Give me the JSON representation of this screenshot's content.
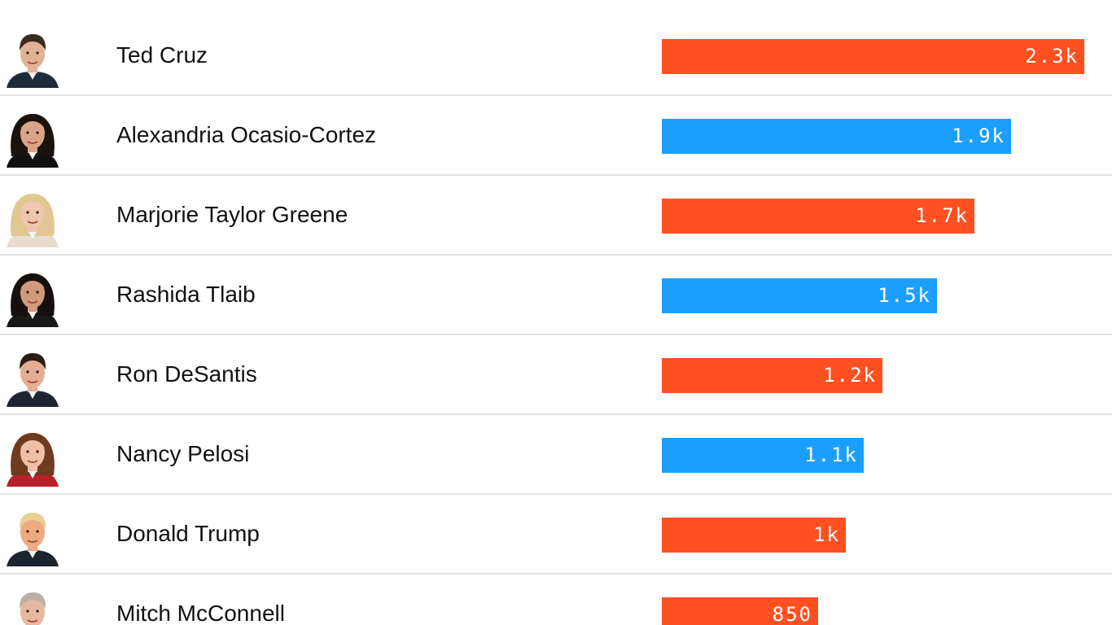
{
  "colors": {
    "republican": "#ff5022",
    "democrat": "#1a9fff"
  },
  "chart_data": {
    "type": "bar",
    "orientation": "horizontal",
    "categories": [
      "Ted Cruz",
      "Alexandria Ocasio-Cortez",
      "Marjorie Taylor Greene",
      "Rashida Tlaib",
      "Ron DeSantis",
      "Nancy Pelosi",
      "Donald Trump",
      "Mitch McConnell"
    ],
    "values": [
      2300,
      1900,
      1700,
      1500,
      1200,
      1100,
      1000,
      850
    ],
    "data_labels": [
      "2.3k",
      "1.9k",
      "1.7k",
      "1.5k",
      "1.2k",
      "1.1k",
      "1k",
      "850"
    ],
    "parties": [
      "republican",
      "democrat",
      "republican",
      "democrat",
      "republican",
      "democrat",
      "republican",
      "republican"
    ],
    "grid": false,
    "legend": "none"
  },
  "rows": [
    {
      "name": "Ted Cruz",
      "avatar_icon": "ted-cruz-portrait-icon",
      "hair": "#3a2a22",
      "skin": "#e2b196",
      "suit": "#1f2a3a"
    },
    {
      "name": "Alexandria Ocasio-Cortez",
      "avatar_icon": "alexandria-ocasio-cortez-portrait-icon",
      "hair": "#1b120e",
      "skin": "#dba487",
      "suit": "#111111"
    },
    {
      "name": "Marjorie Taylor Greene",
      "avatar_icon": "marjorie-taylor-greene-portrait-icon",
      "hair": "#e2c790",
      "skin": "#f0c6b0",
      "suit": "#e8dccc"
    },
    {
      "name": "Rashida Tlaib",
      "avatar_icon": "rashida-tlaib-portrait-icon",
      "hair": "#15100e",
      "skin": "#d09a7c",
      "suit": "#181818"
    },
    {
      "name": "Ron DeSantis",
      "avatar_icon": "ron-desantis-portrait-icon",
      "hair": "#2b1d16",
      "skin": "#e3ae93",
      "suit": "#1d2533"
    },
    {
      "name": "Nancy Pelosi",
      "avatar_icon": "nancy-pelosi-portrait-icon",
      "hair": "#6e3b1e",
      "skin": "#efc0a6",
      "suit": "#b8202a"
    },
    {
      "name": "Donald Trump",
      "avatar_icon": "donald-trump-portrait-icon",
      "hair": "#e9cf94",
      "skin": "#eeaa80",
      "suit": "#1c2430"
    },
    {
      "name": "Mitch McConnell",
      "avatar_icon": "mitch-mcconnell-portrait-icon",
      "hair": "#b9b1a8",
      "skin": "#e5b9a0",
      "suit": "#2b2f38"
    }
  ]
}
